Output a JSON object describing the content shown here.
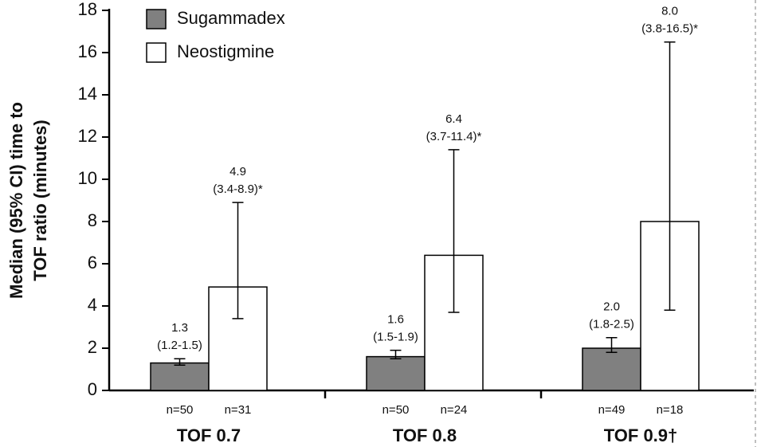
{
  "chart_data": {
    "type": "bar",
    "ylabel": [
      "Median (95% CI) time to",
      "TOF ratio (minutes)"
    ],
    "categories": [
      "TOF 0.7",
      "TOF 0.8",
      "TOF 0.9†"
    ],
    "series": [
      {
        "name": "Sugammadex",
        "color": "#808080",
        "values": [
          1.3,
          1.6,
          2.0
        ],
        "value_labels": [
          "1.3",
          "1.6",
          "2.0"
        ],
        "ci_low": [
          1.2,
          1.5,
          1.8
        ],
        "ci_high": [
          1.5,
          1.9,
          2.5
        ],
        "ci_labels": [
          "(1.2-1.5)",
          "(1.5-1.9)",
          "(1.8-2.5)"
        ],
        "n_labels": [
          "n=50",
          "n=50",
          "n=49"
        ]
      },
      {
        "name": "Neostigmine",
        "color": "#ffffff",
        "values": [
          4.9,
          6.4,
          8.0
        ],
        "value_labels": [
          "4.9",
          "6.4",
          "8.0"
        ],
        "ci_low": [
          3.4,
          3.7,
          3.8
        ],
        "ci_high": [
          8.9,
          11.4,
          16.5
        ],
        "ci_labels": [
          "(3.4-8.9)*",
          "(3.7-11.4)*",
          "(3.8-16.5)*"
        ],
        "n_labels": [
          "n=31",
          "n=24",
          "n=18"
        ]
      }
    ],
    "ylim": [
      0,
      18
    ],
    "yticks": [
      0,
      2,
      4,
      6,
      8,
      10,
      12,
      14,
      16,
      18
    ]
  }
}
